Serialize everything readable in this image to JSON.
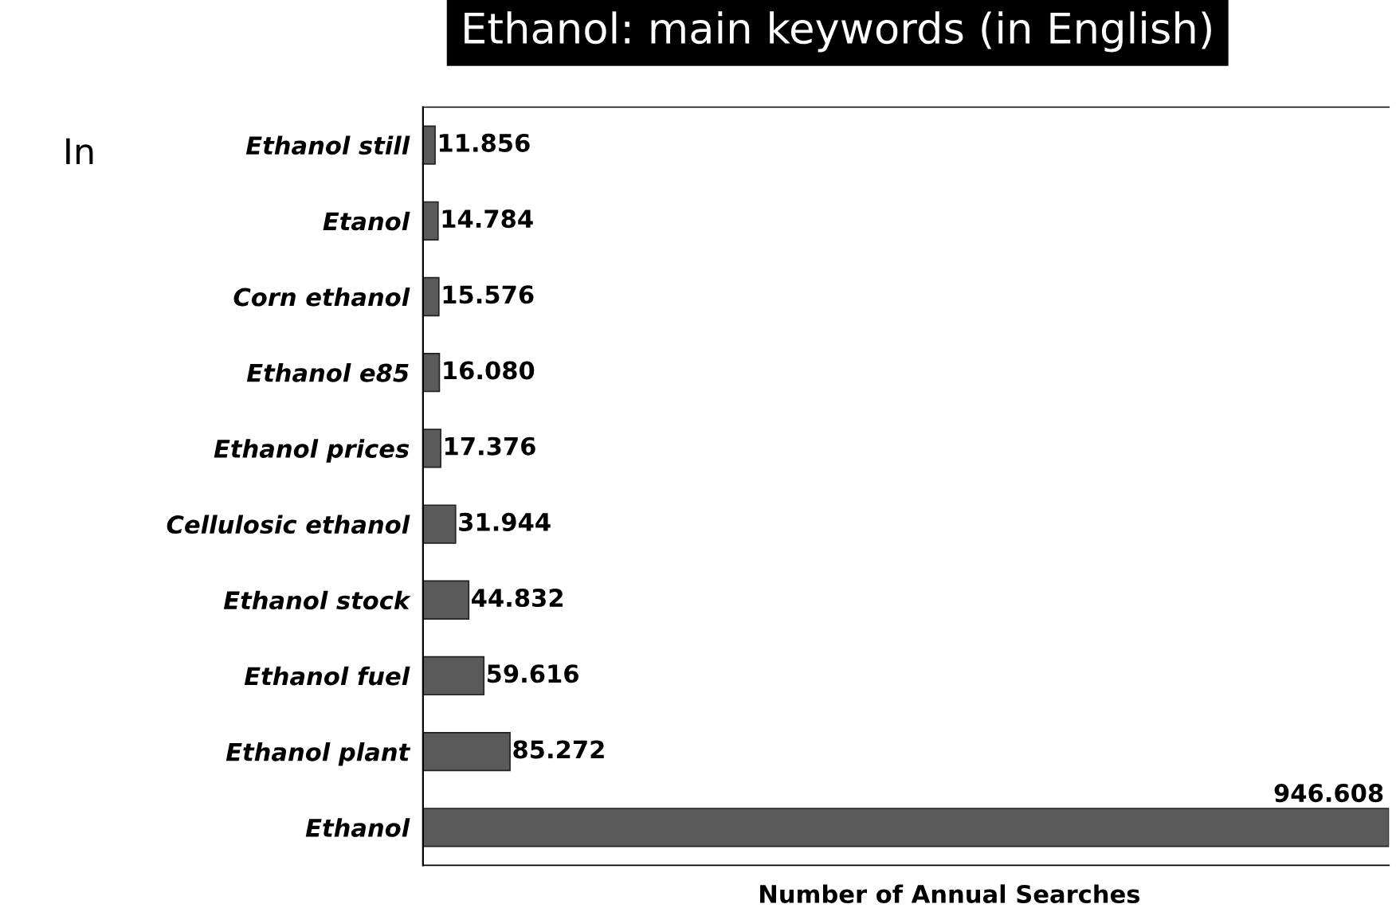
{
  "chart_data": {
    "type": "bar",
    "orientation": "horizontal",
    "title": "Ethanol: main keywords (in English)",
    "xlabel": "Number of Annual Searches",
    "categories": [
      "Ethanol still",
      "Etanol",
      "Corn ethanol",
      "Ethanol e85",
      "Ethanol prices",
      "Cellulosic ethanol",
      "Ethanol stock",
      "Ethanol fuel",
      "Ethanol plant",
      "Ethanol"
    ],
    "values": [
      11856,
      14784,
      15576,
      16080,
      17376,
      31944,
      44832,
      59616,
      85272,
      946608
    ],
    "value_labels": [
      "11.856",
      "14.784",
      "15.576",
      "16.080",
      "17.376",
      "31.944",
      "44.832",
      "59.616",
      "85.272",
      "946.608"
    ],
    "color": "#5a5a5a",
    "grid": false,
    "legend": false,
    "annotations": [
      "In"
    ]
  }
}
